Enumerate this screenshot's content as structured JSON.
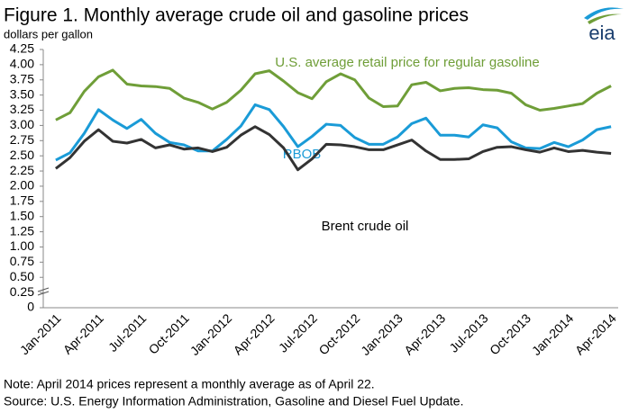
{
  "chart_data": {
    "type": "line",
    "title": "Figure 1. Monthly  average crude oil and gasoline prices",
    "y_label": "dollars  per gallon",
    "logo": "eia",
    "note": "Note: April 2014 prices represent a monthly average as of April 22.",
    "source": "Source: U.S. Energy Information Administration, Gasoline and  Diesel Fuel Update.",
    "categories": [
      "Jan-2011",
      null,
      null,
      "Apr-2011",
      null,
      null,
      "Jul-2011",
      null,
      null,
      "Oct-2011",
      null,
      null,
      "Jan-2012",
      null,
      null,
      "Apr-2012",
      null,
      null,
      "Jul-2012",
      null,
      null,
      "Oct-2012",
      null,
      null,
      "Jan-2013",
      null,
      null,
      "Apr-2013",
      null,
      null,
      "Jul-2013",
      null,
      null,
      "Oct-2013",
      null,
      null,
      "Jan-2014",
      null,
      null,
      "Apr-2014"
    ],
    "series": [
      {
        "name": "U.S. average retail price for regular gasoline",
        "color": "#6f9e38",
        "values": [
          3.09,
          3.21,
          3.56,
          3.8,
          3.91,
          3.68,
          3.65,
          3.64,
          3.61,
          3.45,
          3.38,
          3.27,
          3.38,
          3.58,
          3.85,
          3.9,
          3.73,
          3.54,
          3.44,
          3.72,
          3.85,
          3.75,
          3.45,
          3.31,
          3.32,
          3.67,
          3.71,
          3.57,
          3.61,
          3.62,
          3.59,
          3.58,
          3.53,
          3.34,
          3.25,
          3.28,
          3.32,
          3.36,
          3.53,
          3.65
        ]
      },
      {
        "name": "RBOB",
        "color": "#1a9bd7",
        "values": [
          2.43,
          2.55,
          2.87,
          3.26,
          3.09,
          2.95,
          3.1,
          2.87,
          2.72,
          2.68,
          2.58,
          2.58,
          2.77,
          2.99,
          3.34,
          3.26,
          2.98,
          2.65,
          2.82,
          3.02,
          3.0,
          2.8,
          2.69,
          2.69,
          2.81,
          3.03,
          3.12,
          2.84,
          2.84,
          2.81,
          3.01,
          2.96,
          2.73,
          2.63,
          2.62,
          2.72,
          2.65,
          2.76,
          2.93,
          2.98
        ]
      },
      {
        "name": "Brent crude oil",
        "color": "#333333",
        "values": [
          2.29,
          2.47,
          2.74,
          2.93,
          2.74,
          2.71,
          2.77,
          2.63,
          2.68,
          2.61,
          2.63,
          2.57,
          2.64,
          2.84,
          2.98,
          2.85,
          2.63,
          2.27,
          2.45,
          2.69,
          2.68,
          2.65,
          2.6,
          2.6,
          2.68,
          2.76,
          2.58,
          2.44,
          2.44,
          2.45,
          2.57,
          2.64,
          2.65,
          2.6,
          2.56,
          2.63,
          2.57,
          2.59,
          2.56,
          2.54
        ]
      }
    ],
    "ylim": [
      0,
      4.25
    ],
    "yticks": [
      0,
      0.25,
      {
        "value": 0.5,
        "label": "0.50"
      },
      0.75,
      {
        "value": 1,
        "label": "1.00"
      },
      1.25,
      {
        "value": 1.5,
        "label": "1.50"
      },
      1.75,
      {
        "value": 2,
        "label": "2.00"
      },
      2.25,
      {
        "value": 2.5,
        "label": "2.50"
      },
      2.75,
      {
        "value": 3,
        "label": "3.00"
      },
      3.25,
      {
        "value": 3.5,
        "label": "3.50"
      },
      3.75,
      {
        "value": 4,
        "label": "4.00"
      },
      4.25
    ],
    "grid": false
  }
}
